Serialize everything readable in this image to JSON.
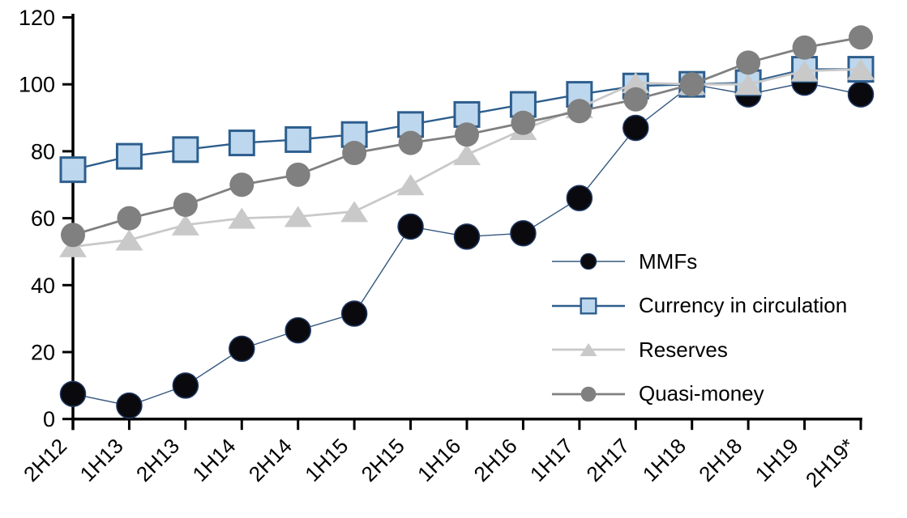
{
  "chart_data": {
    "type": "line",
    "title": "",
    "xlabel": "",
    "ylabel": "",
    "categories": [
      "2H12",
      "1H13",
      "2H13",
      "1H14",
      "2H14",
      "1H15",
      "2H15",
      "1H16",
      "2H16",
      "1H17",
      "2H17",
      "1H18",
      "2H18",
      "1H19",
      "2H19*"
    ],
    "series": [
      {
        "name": "MMFs",
        "slug": "mmfs",
        "marker": "circle",
        "marker_size": 31,
        "fill": "#0a0a0e",
        "marker_stroke": "#1f3864",
        "marker_stroke_width": 1.5,
        "line_color": "#35587e",
        "line_width": 1.4,
        "values": [
          7.5,
          4,
          10,
          21,
          26.5,
          31.5,
          57.5,
          54.5,
          55.5,
          66,
          87,
          100,
          97,
          100.5,
          97
        ]
      },
      {
        "name": "Currency in circulation",
        "slug": "currency-in-circulation",
        "marker": "square",
        "marker_size": 30,
        "fill": "#bdd7ee",
        "marker_stroke": "#2d5e8d",
        "marker_stroke_width": 3,
        "line_color": "#2d5e8d",
        "line_width": 2.4,
        "values": [
          74.5,
          78.5,
          80.5,
          82.5,
          83.5,
          85,
          88,
          91,
          94,
          97,
          99.5,
          100,
          100.5,
          104.5,
          104.5
        ]
      },
      {
        "name": "Reserves",
        "slug": "reserves",
        "marker": "triangle",
        "marker_width": 34,
        "marker_height": 26,
        "fill": "#c9c9c9",
        "marker_stroke": "none",
        "marker_stroke_width": 0,
        "line_color": "#c9c9c9",
        "line_width": 2.8,
        "values": [
          51.5,
          53.5,
          58,
          60,
          60.5,
          62,
          70,
          79,
          86.5,
          93,
          100.5,
          100,
          100,
          104,
          104.5
        ]
      },
      {
        "name": "Quasi-money",
        "slug": "quasi-money",
        "marker": "circle",
        "marker_size": 30,
        "fill": "#808080",
        "marker_stroke": "none",
        "marker_stroke_width": 0,
        "line_color": "#808080",
        "line_width": 2.8,
        "values": [
          55,
          60,
          64,
          70,
          73,
          79.5,
          82.5,
          85,
          88.5,
          92,
          95.5,
          100,
          106.5,
          111,
          114
        ]
      }
    ],
    "ylim": [
      0,
      120
    ],
    "yticks": [
      0,
      20,
      40,
      60,
      80,
      100,
      120
    ],
    "x_tick_label_rotation_deg": -45,
    "grid": false,
    "legend_position": "inside-right",
    "axis_color": "#000000"
  }
}
